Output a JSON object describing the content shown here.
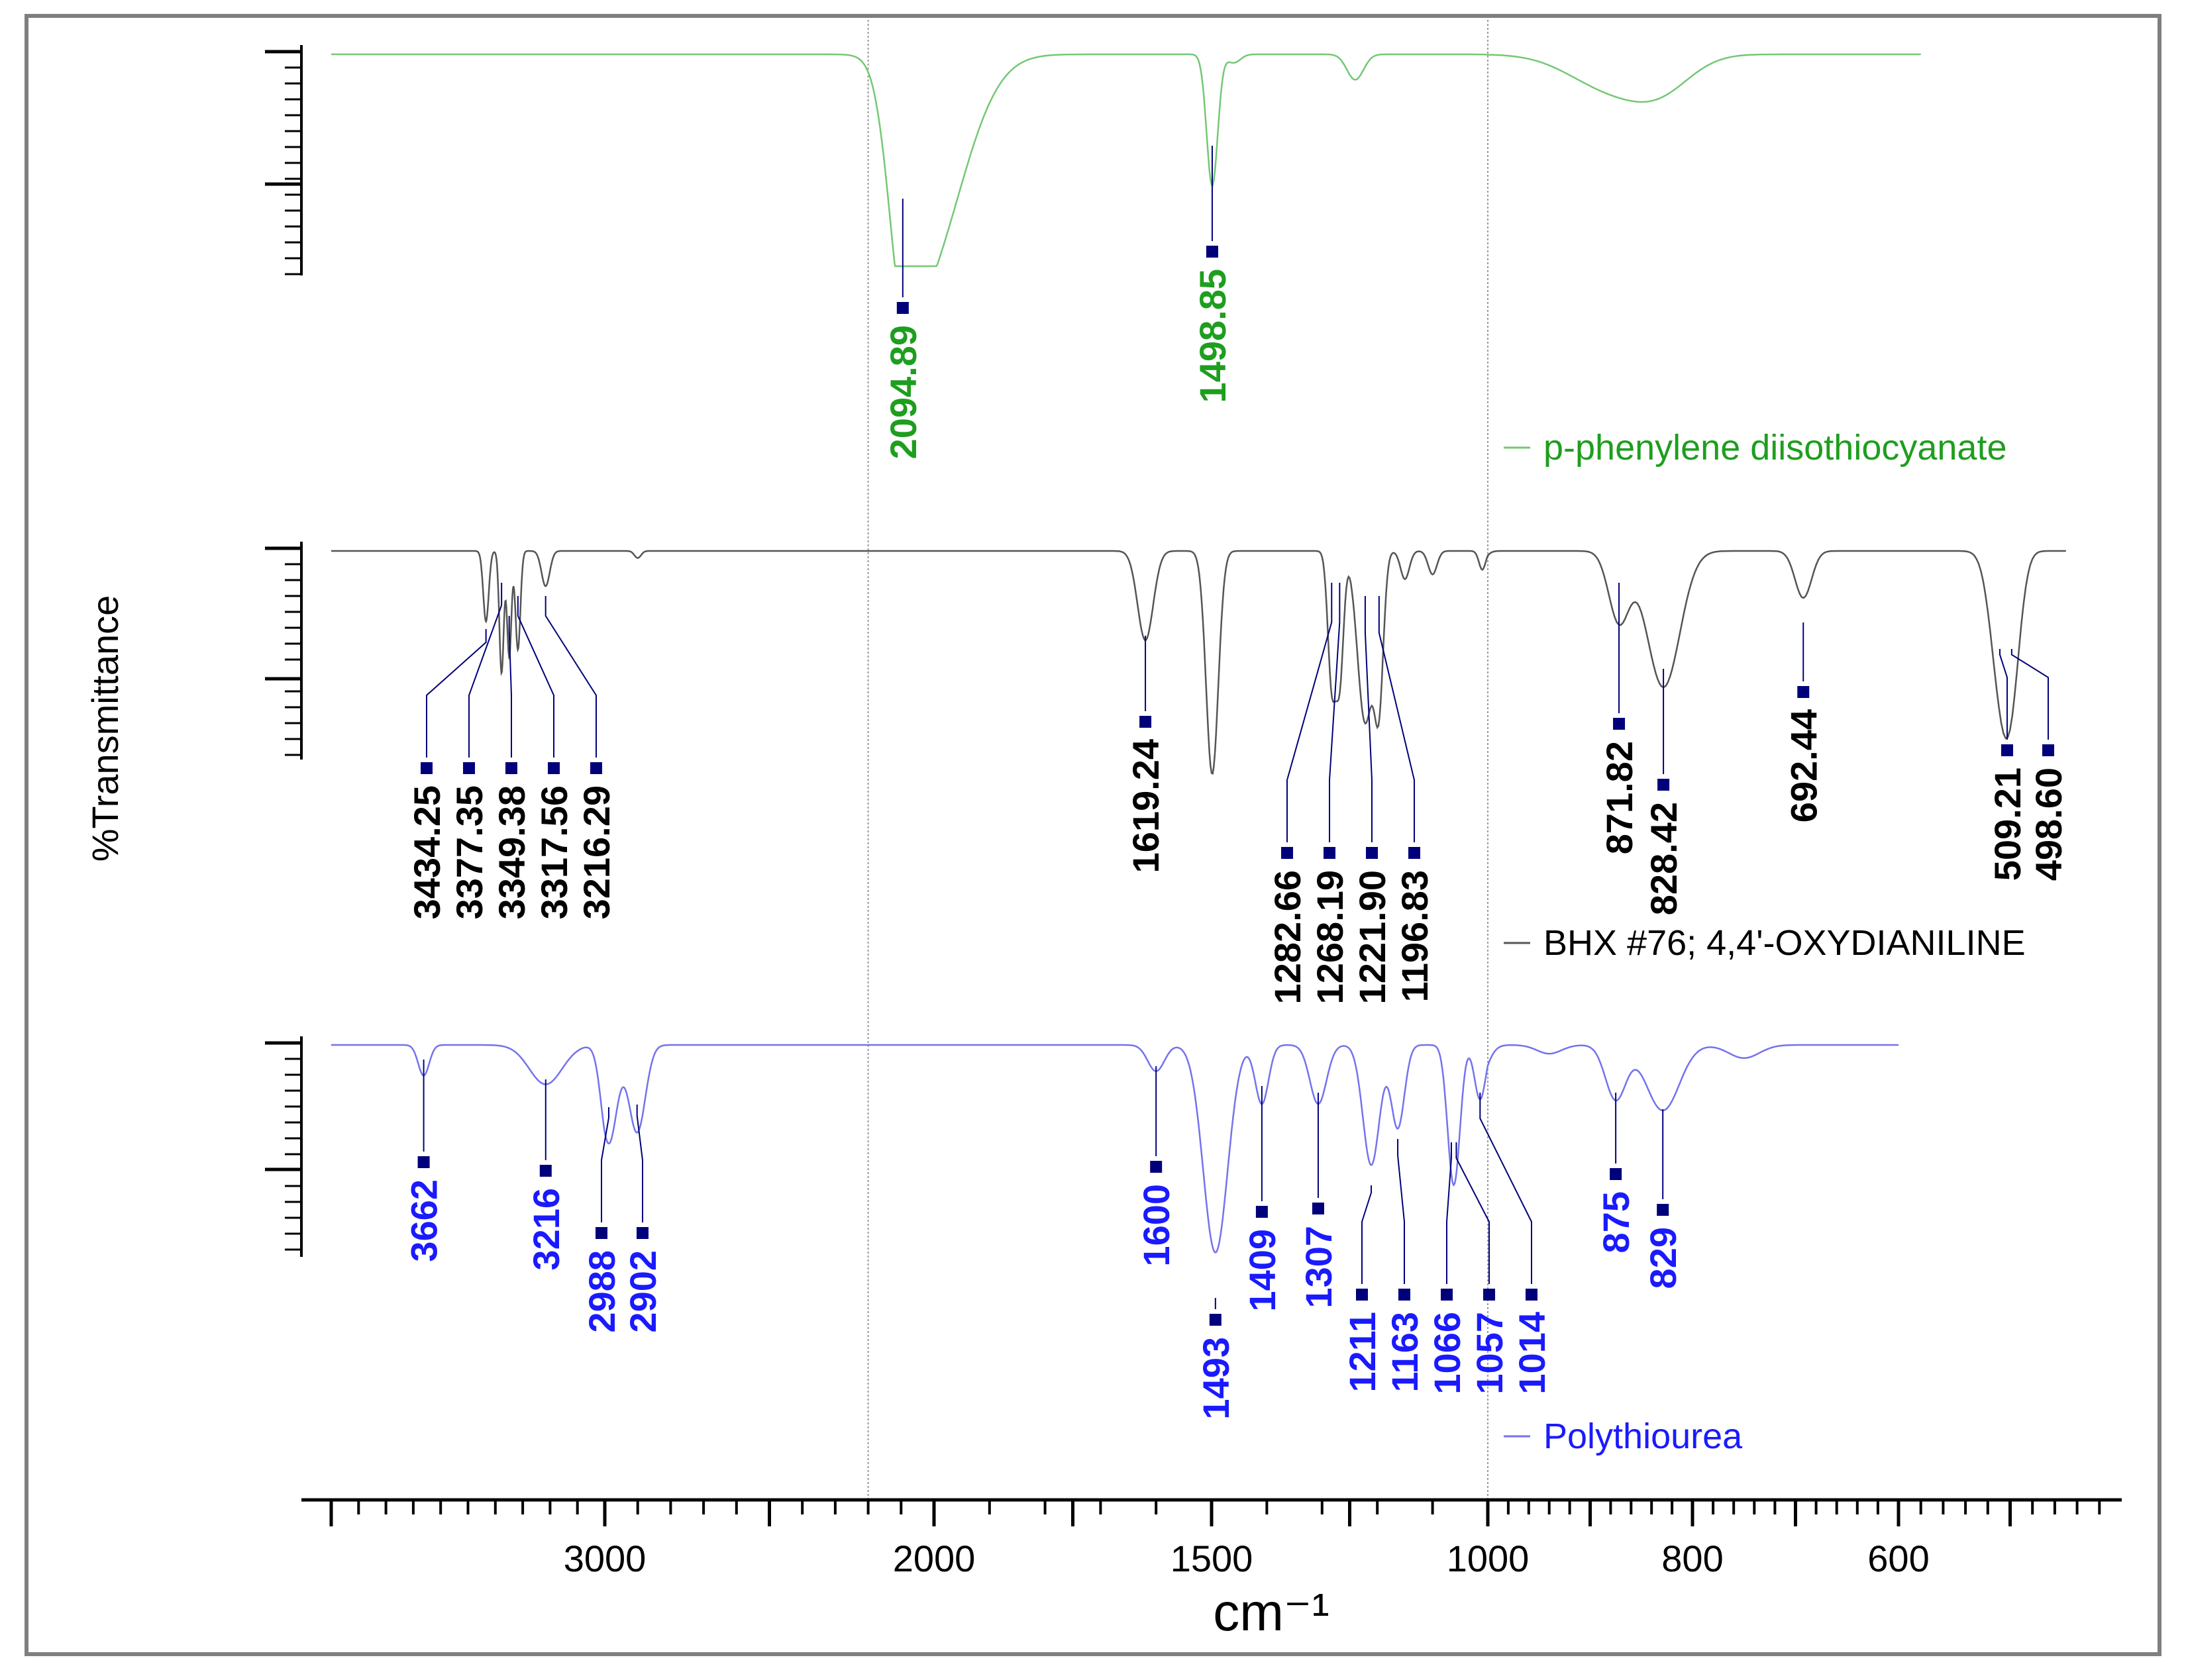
{
  "chart_data": {
    "type": "line",
    "title": "",
    "xlabel": "cm⁻¹",
    "ylabel": "%Transmittance",
    "x_tick_labels": [
      "3000",
      "2000",
      "1500",
      "1000",
      "800",
      "600"
    ],
    "x_tick_values": [
      3000,
      2000,
      1500,
      1000,
      800,
      600
    ],
    "xlim": [
      4000,
      400
    ],
    "reference_lines": [
      2200,
      1000
    ],
    "colors": {
      "series1": "#74c874",
      "series1_label": "#1e9e1e",
      "series2": "#555555",
      "series2_label": "#000000",
      "series3": "#7373ee",
      "series3_label": "#1a1aff",
      "marker": "#00007a",
      "axis": "#000000",
      "frame": "#7f7f7f"
    },
    "series": [
      {
        "name": "p-phenylene diisothiocyanate",
        "peak_labels": [
          "2094.89",
          "1498.85"
        ],
        "peaks": [
          2094.89,
          1498.85
        ],
        "baseline_extent": [
          4000,
          580
        ]
      },
      {
        "name": "BHX #76; 4,4'-OXYDIANILINE",
        "peak_labels": [
          "3434.25",
          "3377.35",
          "3349.38",
          "3317.56",
          "3216.29",
          "1619.24",
          "1282.66",
          "1268.19",
          "1221.90",
          "1196.83",
          "871.82",
          "828.42",
          "692.44",
          "509.21",
          "498.60"
        ],
        "peaks": [
          3434.25,
          3377.35,
          3349.38,
          3317.56,
          3216.29,
          1619.24,
          1282.66,
          1268.19,
          1221.9,
          1196.83,
          871.82,
          828.42,
          692.44,
          509.21,
          498.6
        ],
        "baseline_extent": [
          4000,
          450
        ]
      },
      {
        "name": "Polythiourea",
        "peak_labels": [
          "3662",
          "3216",
          "2988",
          "2902",
          "1600",
          "1493",
          "1409",
          "1307",
          "1211",
          "1163",
          "1066",
          "1057",
          "1014",
          "875",
          "829"
        ],
        "peaks": [
          3662,
          3216,
          2988,
          2902,
          1600,
          1493,
          1409,
          1307,
          1211,
          1163,
          1066,
          1057,
          1014,
          875,
          829
        ],
        "baseline_extent": [
          4000,
          600
        ]
      }
    ]
  }
}
